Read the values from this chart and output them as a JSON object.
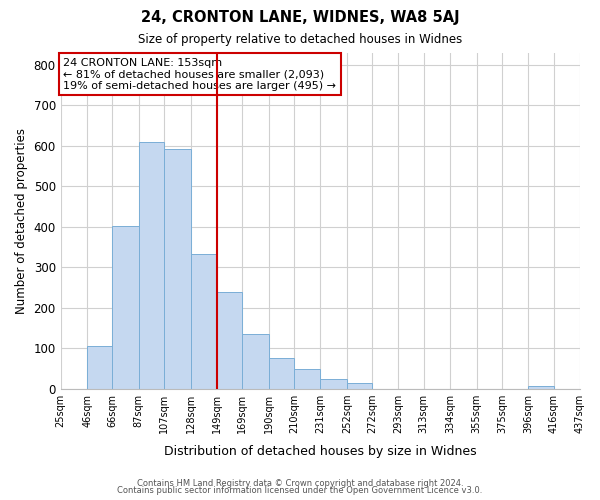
{
  "title": "24, CRONTON LANE, WIDNES, WA8 5AJ",
  "subtitle": "Size of property relative to detached houses in Widnes",
  "xlabel": "Distribution of detached houses by size in Widnes",
  "ylabel": "Number of detached properties",
  "bar_left_edges": [
    25,
    46,
    66,
    87,
    107,
    128,
    149,
    169,
    190,
    210,
    231,
    252,
    272,
    293,
    313,
    334,
    355,
    375,
    396,
    416
  ],
  "bar_widths": [
    21,
    20,
    21,
    20,
    21,
    21,
    20,
    21,
    20,
    21,
    21,
    20,
    21,
    20,
    21,
    21,
    20,
    21,
    20,
    21
  ],
  "bar_heights": [
    0,
    106,
    403,
    610,
    592,
    332,
    240,
    136,
    76,
    50,
    25,
    15,
    0,
    0,
    0,
    0,
    0,
    0,
    7,
    0
  ],
  "tick_labels": [
    "25sqm",
    "46sqm",
    "66sqm",
    "87sqm",
    "107sqm",
    "128sqm",
    "149sqm",
    "169sqm",
    "190sqm",
    "210sqm",
    "231sqm",
    "252sqm",
    "272sqm",
    "293sqm",
    "313sqm",
    "334sqm",
    "355sqm",
    "375sqm",
    "396sqm",
    "416sqm",
    "437sqm"
  ],
  "bar_color": "#c5d8f0",
  "bar_edge_color": "#7aaed6",
  "vline_x": 149,
  "vline_color": "#cc0000",
  "ylim": [
    0,
    830
  ],
  "yticks": [
    0,
    100,
    200,
    300,
    400,
    500,
    600,
    700,
    800
  ],
  "annotation_title": "24 CRONTON LANE: 153sqm",
  "annotation_line1": "← 81% of detached houses are smaller (2,093)",
  "annotation_line2": "19% of semi-detached houses are larger (495) →",
  "footer1": "Contains HM Land Registry data © Crown copyright and database right 2024.",
  "footer2": "Contains public sector information licensed under the Open Government Licence v3.0.",
  "background_color": "#ffffff",
  "grid_color": "#d0d0d0"
}
